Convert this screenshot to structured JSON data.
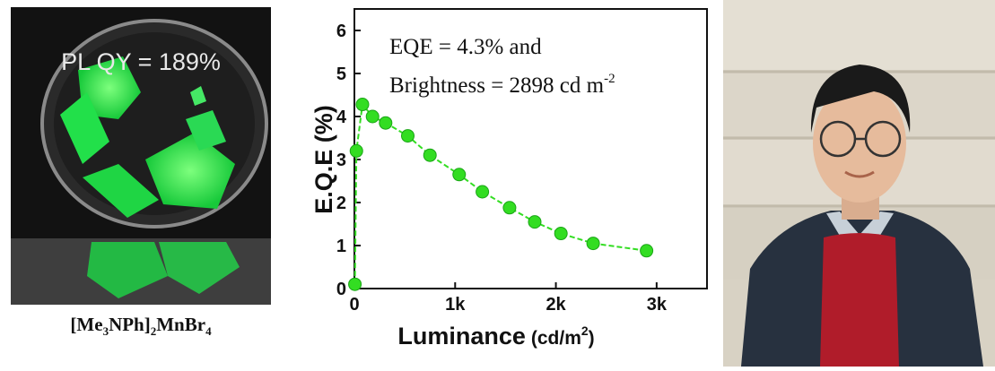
{
  "left_panel": {
    "overlay_text": "PL QY = 189%",
    "caption": {
      "open": "[Me",
      "s1": "3",
      "mid": "NPh]",
      "s2": "2",
      "mnbr": "MnBr",
      "s3": "4"
    }
  },
  "chart_data": {
    "type": "line",
    "annotation_line1": "EQE = 4.3% and",
    "annotation_line2_main": "Brightness = 2898 cd m",
    "annotation_line2_sup": "-2",
    "xlabel_main": "Luminance",
    "xlabel_unit": "(cd/m",
    "xlabel_sup": "2",
    "xlabel_close": ")",
    "ylabel": "E.Q.E (%)",
    "xlim": [
      0,
      3500
    ],
    "ylim": [
      0,
      6.5
    ],
    "x_ticks": [
      0,
      1000,
      2000,
      3000
    ],
    "x_tick_labels": [
      "0",
      "1k",
      "2k",
      "3k"
    ],
    "y_ticks": [
      0,
      1,
      2,
      3,
      4,
      5,
      6
    ],
    "y_tick_labels": [
      "0",
      "1",
      "2",
      "3",
      "4",
      "5",
      "6"
    ],
    "series": [
      {
        "color": "#33dd22",
        "x": [
          5,
          20,
          80,
          180,
          310,
          530,
          750,
          1040,
          1270,
          1540,
          1790,
          2050,
          2370,
          2900
        ],
        "y": [
          0.1,
          3.2,
          4.28,
          4.0,
          3.85,
          3.55,
          3.1,
          2.65,
          2.25,
          1.88,
          1.55,
          1.28,
          1.05,
          0.88
        ]
      }
    ]
  }
}
